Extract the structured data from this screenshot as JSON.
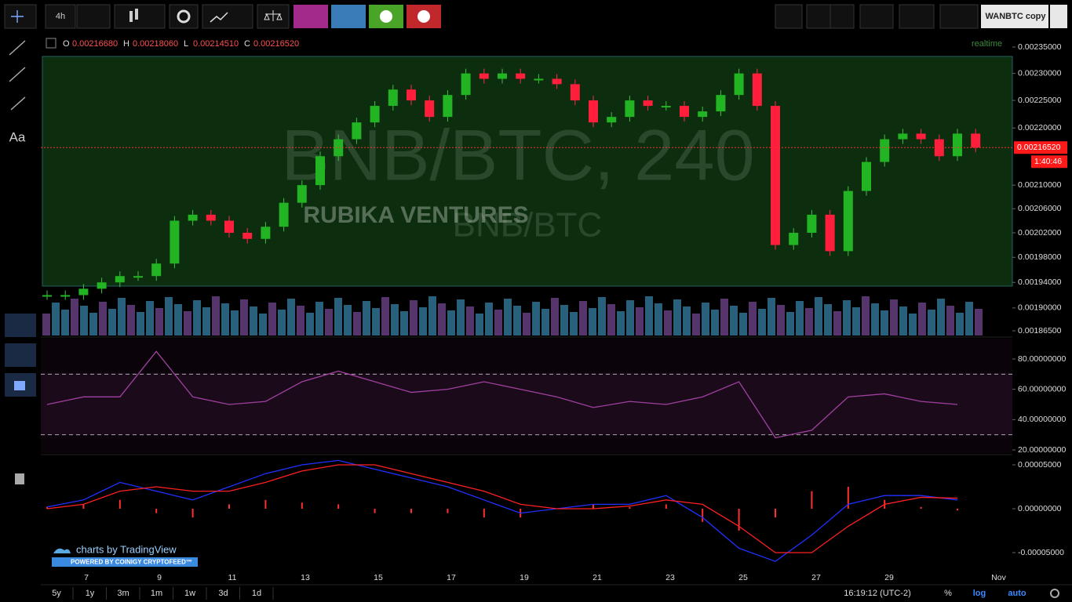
{
  "toolbar": {
    "interval": "4h",
    "symbol_button": "WANBTC copy"
  },
  "left_toolbar": {
    "text_tool": "Aa"
  },
  "legend": {
    "items": [
      {
        "key": "O",
        "value": "0.00216680"
      },
      {
        "key": "H",
        "value": "0.00218060"
      },
      {
        "key": "L",
        "value": "0.00214510"
      },
      {
        "key": "C",
        "value": "0.00216520"
      }
    ],
    "status": "realtime"
  },
  "watermark": {
    "symbol": "BNB/BTC, 240",
    "brand": "RUBIKA VENTURES",
    "pair": "BNB/BTC"
  },
  "price_panel": {
    "log_scale": true,
    "yticks": [
      {
        "value": 0.00235,
        "label": "0.00235000"
      },
      {
        "value": 0.0023,
        "label": "0.00230000"
      },
      {
        "value": 0.00225,
        "label": "0.00225000"
      },
      {
        "value": 0.0022,
        "label": "0.00220000"
      },
      {
        "value": 0.0021,
        "label": "0.00210000"
      },
      {
        "value": 0.00206,
        "label": "0.00206000"
      },
      {
        "value": 0.00202,
        "label": "0.00202000"
      },
      {
        "value": 0.00198,
        "label": "0.00198000"
      },
      {
        "value": 0.00194,
        "label": "0.00194000"
      },
      {
        "value": 0.0019,
        "label": "0.00190000"
      },
      {
        "value": 0.001865,
        "label": "0.00186500"
      }
    ],
    "closes": [
      0.00192,
      0.00192,
      0.00193,
      0.00194,
      0.00195,
      0.00195,
      0.00197,
      0.00204,
      0.00205,
      0.00204,
      0.00202,
      0.00201,
      0.00203,
      0.00207,
      0.0021,
      0.00215,
      0.00218,
      0.00221,
      0.00224,
      0.00227,
      0.00225,
      0.00222,
      0.00226,
      0.0023,
      0.00229,
      0.0023,
      0.00229,
      0.00229,
      0.00228,
      0.00225,
      0.00221,
      0.00222,
      0.00225,
      0.00224,
      0.00224,
      0.00222,
      0.00223,
      0.00226,
      0.0023,
      0.00224,
      0.002,
      0.00202,
      0.00205,
      0.00199,
      0.00209,
      0.00214,
      0.00218,
      0.00219,
      0.00218,
      0.00215,
      0.00219,
      0.0021652
    ],
    "last_price": {
      "value": 0.0021652,
      "label": "0.00216520"
    },
    "countdown": "1:40:46"
  },
  "rsi_panel": {
    "yticks": [
      {
        "value": 80,
        "label": "80.00000000"
      },
      {
        "value": 60,
        "label": "60.00000000"
      },
      {
        "value": 40,
        "label": "40.00000000"
      },
      {
        "value": 20,
        "label": "20.00000000"
      }
    ],
    "bands": [
      70,
      30
    ],
    "values": [
      50,
      55,
      55,
      85,
      55,
      50,
      52,
      65,
      72,
      65,
      58,
      60,
      65,
      60,
      55,
      48,
      52,
      50,
      55,
      65,
      28,
      33,
      55,
      57,
      52,
      50
    ]
  },
  "macd_panel": {
    "yticks": [
      {
        "value": 5e-05,
        "label": "0.00005000"
      },
      {
        "value": 0,
        "label": "0.00000000"
      },
      {
        "value": -5e-05,
        "label": "-0.00005000"
      }
    ],
    "macd": [
      2e-06,
      1e-05,
      3e-05,
      2e-05,
      1e-05,
      2.5e-05,
      4e-05,
      5e-05,
      5.5e-05,
      4.5e-05,
      3.5e-05,
      2.5e-05,
      1e-05,
      -5e-06,
      0,
      5e-06,
      5e-06,
      1.5e-05,
      -1e-05,
      -4.5e-05,
      -6e-05,
      -3e-05,
      5e-06,
      1.5e-05,
      1.5e-05,
      1e-05
    ],
    "signal": [
      0,
      5e-06,
      2e-05,
      2.5e-05,
      2e-05,
      2e-05,
      3e-05,
      4.3e-05,
      5e-05,
      5e-05,
      4e-05,
      3e-05,
      2e-05,
      5e-06,
      0,
      0,
      3e-06,
      1e-05,
      5e-06,
      -2e-05,
      -5e-05,
      -5e-05,
      -2e-05,
      5e-06,
      1.3e-05,
      1.2e-05
    ],
    "histogram": [
      2e-06,
      5e-06,
      1e-05,
      -5e-06,
      -1e-05,
      5e-06,
      1e-05,
      7e-06,
      5e-06,
      -5e-06,
      -5e-06,
      -5e-06,
      -1e-05,
      -1e-05,
      0,
      5e-06,
      2e-06,
      5e-06,
      -1.5e-05,
      -2.5e-05,
      -1e-05,
      2e-05,
      2.5e-05,
      1e-05,
      2e-06,
      -2e-06
    ]
  },
  "x_axis": {
    "ticks": [
      "7",
      "9",
      "11",
      "13",
      "15",
      "17",
      "19",
      "21",
      "23",
      "25",
      "27",
      "29",
      "Nov"
    ]
  },
  "branding": {
    "tradingview": "charts by TradingView",
    "coinigy": "POWERED BY COINIGY CRYPTOFEED™"
  },
  "bottom_bar": {
    "ranges": [
      "5y",
      "1y",
      "3m",
      "1m",
      "1w",
      "3d",
      "1d"
    ],
    "clock": "16:19:12 (UTC-2)",
    "percent": "%",
    "log": "log",
    "auto": "auto"
  }
}
